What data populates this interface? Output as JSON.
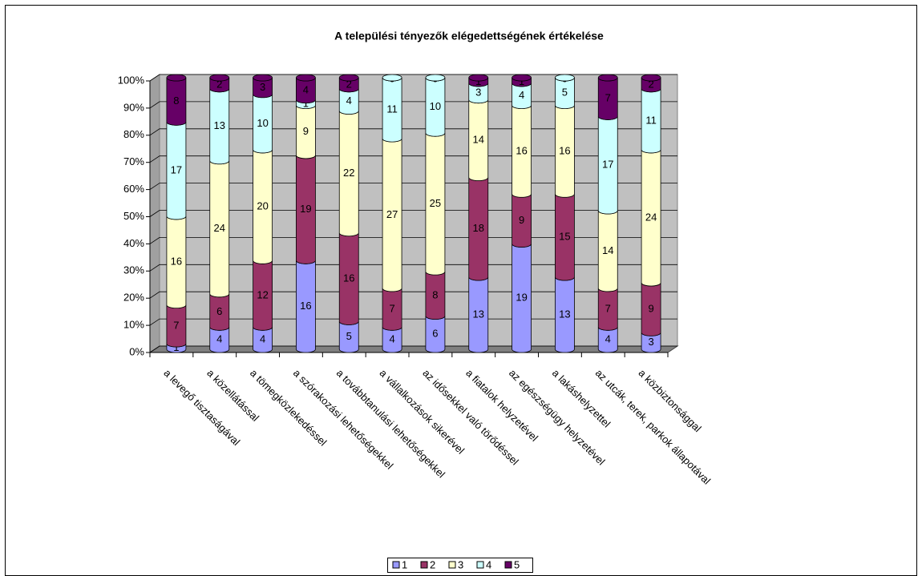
{
  "chart_data": {
    "type": "bar",
    "stacked": "percent",
    "shape": "cylinder",
    "title": "A települési tényezők elégedettségének értékelése",
    "categories": [
      "a levegő tisztaságával",
      "a közellátással",
      "a tömegközlekedéssel",
      "a szórakozási lehetőségekkel",
      "a továbbtanulási lehetőségekkel",
      "a vállalkozások sikerével",
      "az idősekkel való törődéssel",
      "a fiatalok helyzetével",
      "az egészségügy helyzetével",
      "a lakáshelyzettel",
      "az utcák, terek, parkok állapotával",
      "a közbiztonsággal"
    ],
    "series": [
      {
        "name": "1",
        "color": "#9999ff",
        "values": [
          1,
          4,
          4,
          16,
          5,
          4,
          6,
          13,
          19,
          13,
          4,
          3
        ]
      },
      {
        "name": "2",
        "color": "#993366",
        "values": [
          7,
          6,
          12,
          19,
          16,
          7,
          8,
          18,
          9,
          15,
          7,
          9
        ]
      },
      {
        "name": "3",
        "color": "#ffffcc",
        "values": [
          16,
          24,
          20,
          9,
          22,
          27,
          25,
          14,
          16,
          16,
          14,
          24
        ]
      },
      {
        "name": "4",
        "color": "#ccffff",
        "values": [
          17,
          13,
          10,
          1,
          4,
          11,
          10,
          3,
          4,
          5,
          17,
          11
        ]
      },
      {
        "name": "5",
        "color": "#660066",
        "values": [
          8,
          2,
          3,
          4,
          2,
          0,
          0,
          1,
          1,
          0,
          7,
          2
        ]
      }
    ],
    "ylim": [
      0,
      100
    ],
    "yticks": [
      {
        "value": 0,
        "label": "0%"
      },
      {
        "value": 10,
        "label": "10%"
      },
      {
        "value": 20,
        "label": "20%"
      },
      {
        "value": 30,
        "label": "30%"
      },
      {
        "value": 40,
        "label": "40%"
      },
      {
        "value": 50,
        "label": "50%"
      },
      {
        "value": 60,
        "label": "60%"
      },
      {
        "value": 70,
        "label": "70%"
      },
      {
        "value": 80,
        "label": "80%"
      },
      {
        "value": 90,
        "label": "90%"
      },
      {
        "value": 100,
        "label": "100%"
      }
    ],
    "grid": true,
    "legend": "bottom"
  }
}
